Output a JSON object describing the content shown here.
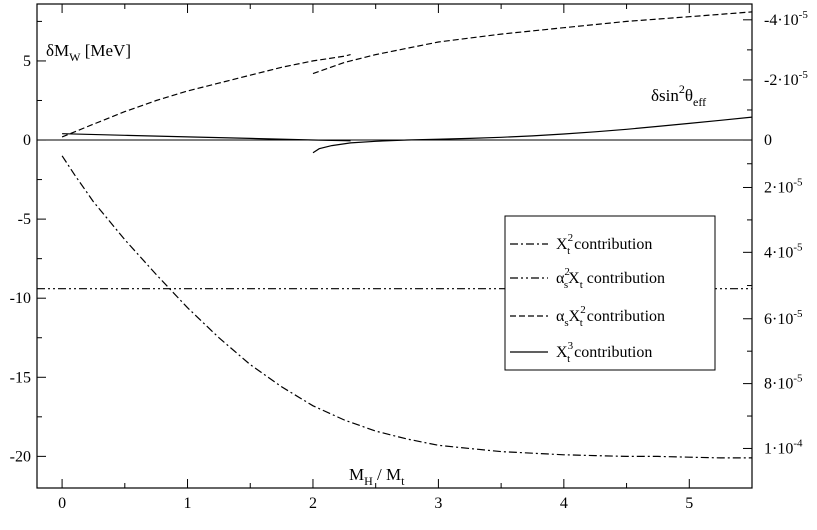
{
  "chart_data": {
    "type": "line",
    "xlabel": {
      "main": "M",
      "sub1": "H",
      "mid": " / M",
      "sub2": "t"
    },
    "ylabel_left": {
      "main": "δM",
      "sub": "W",
      "rest": " [MeV]"
    },
    "ylabel_right": {
      "main": "δsin",
      "sup": "2",
      "mid": "θ",
      "sub": "eff"
    },
    "xlim": [
      -0.2,
      5.5
    ],
    "ylim": [
      -22,
      8.6
    ],
    "x_ticks": [
      {
        "v": 0,
        "label": "0"
      },
      {
        "v": 1,
        "label": "1"
      },
      {
        "v": 2,
        "label": "2"
      },
      {
        "v": 3,
        "label": "3"
      },
      {
        "v": 4,
        "label": "4"
      },
      {
        "v": 5,
        "label": "5"
      }
    ],
    "y_ticks_left": [
      {
        "v": 5,
        "label": "5"
      },
      {
        "v": 0,
        "label": "0"
      },
      {
        "v": -5,
        "label": "-5"
      },
      {
        "v": -10,
        "label": "-10"
      },
      {
        "v": -15,
        "label": "-15"
      },
      {
        "v": -20,
        "label": "-20"
      }
    ],
    "y_ticks_right": [
      {
        "v": 7.6,
        "label": "-4·10",
        "exp": "-5"
      },
      {
        "v": 3.8,
        "label": "-2·10",
        "exp": "-5"
      },
      {
        "v": 0,
        "label": "0",
        "exp": ""
      },
      {
        "v": -3.0,
        "label": "2·10",
        "exp": "-5"
      },
      {
        "v": -7.1,
        "label": "4·10",
        "exp": "-5"
      },
      {
        "v": -11.3,
        "label": "6·10",
        "exp": "-5"
      },
      {
        "v": -15.4,
        "label": "8·10",
        "exp": "-5"
      },
      {
        "v": -19.5,
        "label": "1·10",
        "exp": "-4"
      }
    ],
    "zero_line": true,
    "legend": {
      "placement": "right",
      "entries": [
        {
          "series": 0,
          "pre": "X",
          "sub": "t",
          "sup": "2",
          "mid": "",
          "sub2": "",
          "post": " contribution"
        },
        {
          "series": 1,
          "pre": "α",
          "sub": "s",
          "sup": "2",
          "mid": "X",
          "sub2": "t",
          "post": " contribution"
        },
        {
          "series": 2,
          "pre": "α",
          "sub": "s",
          "sup": "",
          "mid": "X",
          "sub2": "t",
          "sup2": "2",
          "post": " contribution"
        },
        {
          "series": 3,
          "pre": "X",
          "sub": "t",
          "sup": "3",
          "mid": "",
          "sub2": "",
          "post": " contribution"
        }
      ]
    },
    "series": [
      {
        "style": "dashdot",
        "segments": [
          {
            "x": [
              0,
              0.1,
              0.25,
              0.5,
              0.75,
              1.0,
              1.25,
              1.5,
              1.75,
              2.0,
              2.25,
              2.5,
              2.75,
              3.0,
              3.25,
              3.5,
              3.75,
              4.0,
              4.25,
              4.5,
              4.75,
              5.0,
              5.25,
              5.5
            ],
            "y": [
              -1.0,
              -2.2,
              -3.9,
              -6.3,
              -8.5,
              -10.6,
              -12.5,
              -14.2,
              -15.6,
              -16.8,
              -17.7,
              -18.4,
              -18.9,
              -19.3,
              -19.5,
              -19.7,
              -19.8,
              -19.9,
              -19.95,
              -20.0,
              -20.0,
              -20.05,
              -20.1,
              -20.1
            ]
          }
        ]
      },
      {
        "style": "dashdotdot",
        "segments": [
          {
            "x": [
              -0.2,
              5.5
            ],
            "y": [
              -9.4,
              -9.4
            ]
          }
        ]
      },
      {
        "style": "dashed",
        "segments": [
          {
            "x": [
              0,
              0.25,
              0.5,
              0.75,
              1.0,
              1.25,
              1.5,
              1.75,
              2.0,
              2.25,
              2.3
            ],
            "y": [
              0.2,
              1.0,
              1.8,
              2.5,
              3.1,
              3.6,
              4.1,
              4.6,
              5.0,
              5.3,
              5.4
            ]
          },
          {
            "x": [
              2.0,
              2.25,
              2.5,
              2.75,
              3.0,
              3.5,
              4.0,
              4.5,
              5.0,
              5.5
            ],
            "y": [
              4.2,
              4.9,
              5.4,
              5.8,
              6.2,
              6.7,
              7.1,
              7.5,
              7.8,
              8.1
            ]
          }
        ]
      },
      {
        "style": "solid",
        "segments": [
          {
            "x": [
              0,
              0.5,
              1.0,
              1.5,
              2.0,
              2.3
            ],
            "y": [
              0.4,
              0.3,
              0.2,
              0.1,
              0.0,
              -0.05
            ]
          },
          {
            "x": [
              2.0,
              2.05,
              2.15,
              2.3,
              2.5,
              2.75,
              3.0,
              3.25,
              3.5,
              3.75,
              4.0,
              4.25,
              4.5,
              4.75,
              5.0,
              5.25,
              5.5
            ],
            "y": [
              -0.8,
              -0.55,
              -0.35,
              -0.18,
              -0.08,
              0.0,
              0.05,
              0.1,
              0.17,
              0.26,
              0.38,
              0.52,
              0.68,
              0.86,
              1.05,
              1.25,
              1.45
            ]
          }
        ]
      }
    ]
  }
}
